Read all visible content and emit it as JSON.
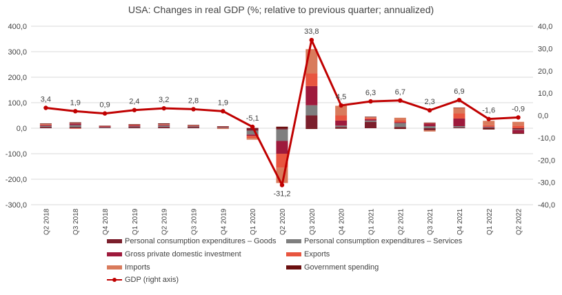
{
  "chart_data": {
    "type": "bar",
    "stacked": true,
    "title": "USA: Changes in real GDP (%; relative to previous quarter; annualized)",
    "categories": [
      "Q2 2018",
      "Q3 2018",
      "Q4 2018",
      "Q1 2019",
      "Q2 2019",
      "Q3 2019",
      "Q4 2019",
      "Q1 2020",
      "Q2 2020",
      "Q3 2020",
      "Q4 2020",
      "Q1 2021",
      "Q2 2021",
      "Q3 2021",
      "Q4 2021",
      "Q1 2022",
      "Q2 2022"
    ],
    "ylim_left": [
      -300,
      400
    ],
    "ylim_right": [
      -40,
      40
    ],
    "yticks_left": [
      "400,0",
      "300,0",
      "200,0",
      "100,0",
      "0,0",
      "-100,0",
      "-200,0",
      "-300,0"
    ],
    "yticks_right": [
      "40,0",
      "30,0",
      "20,0",
      "10,0",
      "0,0",
      "-10,0",
      "-20,0",
      "-30,0",
      "-40,0"
    ],
    "grid": true,
    "legend_position": "bottom",
    "series": [
      {
        "name": "Personal consumption expenditures – Goods",
        "color": "#7b1f2c",
        "values": [
          5,
          4,
          2,
          4,
          5,
          4,
          2,
          -10,
          -5,
          50,
          5,
          25,
          5,
          -8,
          3,
          2,
          -5
        ]
      },
      {
        "name": "Personal consumption expenditures – Services",
        "color": "#7f7f7f",
        "values": [
          4,
          8,
          2,
          3,
          5,
          3,
          2,
          -15,
          -45,
          40,
          5,
          5,
          15,
          8,
          5,
          2,
          -2
        ]
      },
      {
        "name": "Gross private domestic investment",
        "color": "#9e1a3c",
        "values": [
          3,
          6,
          3,
          4,
          3,
          2,
          1,
          -5,
          -50,
          75,
          20,
          5,
          3,
          10,
          30,
          2,
          -12
        ]
      },
      {
        "name": "Exports",
        "color": "#e8553f",
        "values": [
          2,
          -2,
          1,
          1,
          1,
          1,
          1,
          -8,
          -55,
          50,
          20,
          5,
          8,
          2,
          20,
          5,
          10
        ]
      },
      {
        "name": "Imports",
        "color": "#d97b5c",
        "values": [
          3,
          2,
          1,
          2,
          2,
          1,
          -3,
          -7,
          -60,
          95,
          38,
          3,
          10,
          -5,
          22,
          18,
          15
        ]
      },
      {
        "name": "Government spending",
        "color": "#6b0f0f",
        "values": [
          2,
          3,
          1,
          2,
          3,
          2,
          2,
          1,
          6,
          -3,
          -2,
          2,
          -3,
          2,
          1,
          -5,
          -3
        ]
      }
    ],
    "line": {
      "name": "GDP (right axis)",
      "color": "#c00000",
      "axis": "right",
      "values": [
        3.4,
        1.9,
        0.9,
        2.4,
        3.2,
        2.8,
        1.9,
        -5.1,
        -31.2,
        33.8,
        4.5,
        6.3,
        6.7,
        2.3,
        6.9,
        -1.6,
        -0.9
      ],
      "labels": [
        "3,4",
        "1,9",
        "0,9",
        "2,4",
        "3,2",
        "2,8",
        "1,9",
        "-5,1",
        "-31,2",
        "33,8",
        "4,5",
        "6,3",
        "6,7",
        "2,3",
        "6,9",
        "-1,6",
        "-0,9"
      ]
    }
  },
  "legend": {
    "items": [
      {
        "label": "Personal consumption expenditures – Goods",
        "kind": "bar",
        "color": "#7b1f2c"
      },
      {
        "label": "Personal consumption expenditures – Services",
        "kind": "bar",
        "color": "#7f7f7f"
      },
      {
        "label": "Gross private domestic investment",
        "kind": "bar",
        "color": "#9e1a3c"
      },
      {
        "label": "Exports",
        "kind": "bar",
        "color": "#e8553f"
      },
      {
        "label": "Imports",
        "kind": "bar",
        "color": "#d97b5c"
      },
      {
        "label": "Government spending",
        "kind": "bar",
        "color": "#6b0f0f"
      },
      {
        "label": "GDP (right axis)",
        "kind": "line",
        "color": "#c00000"
      }
    ]
  }
}
